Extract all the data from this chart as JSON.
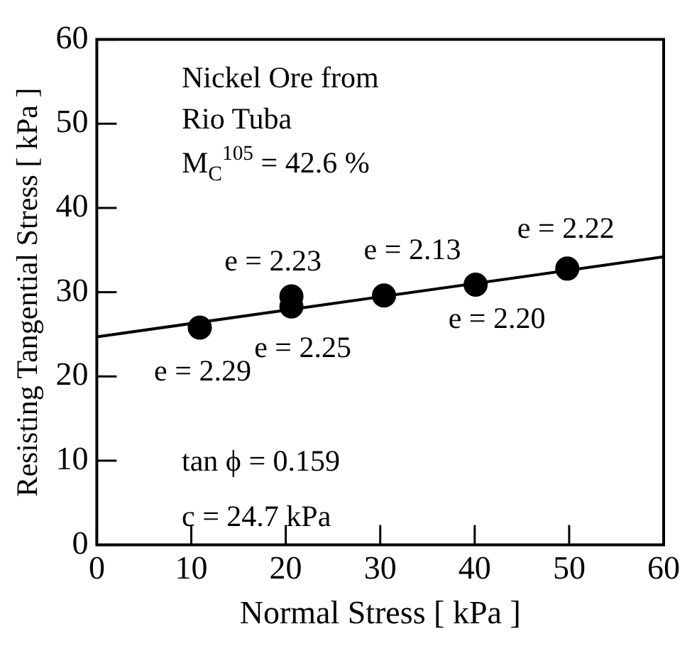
{
  "chart_data": {
    "type": "scatter",
    "xlabel": "Normal Stress [ kPa ]",
    "ylabel": "Resisting Tangential Stress [ kPa ]",
    "x": [
      10.9,
      20.6,
      20.6,
      30.4,
      40.1,
      49.8
    ],
    "series": [
      {
        "color": "#000000",
        "values": [
          25.8,
          29.5,
          28.3,
          29.6,
          30.9,
          32.8
        ]
      },
      {
        "type": "line",
        "color": "#000000",
        "x": [
          0,
          60
        ],
        "values": [
          24.7,
          34.2
        ],
        "marker": "none"
      }
    ],
    "marker": "circle",
    "xlim": [
      0,
      60
    ],
    "xticks": [
      0,
      10,
      20,
      30,
      40,
      50,
      60
    ],
    "ylim": [
      0,
      60
    ],
    "yticks": [
      0,
      10,
      20,
      30,
      40,
      50,
      60
    ],
    "grid": false,
    "legend": false,
    "annotations": [
      "Nickel Ore from",
      "Rio Tuba",
      "M$_{C}$$^{105}$ = 42.6 %",
      "tan ϕ = 0.159",
      "c = 24.7 kPa",
      {
        "text": "e = 2.29",
        "x": 10.9,
        "y": 25.8
      },
      {
        "text": "e = 2.23",
        "x": 20.6,
        "y": 29.5
      },
      {
        "text": "e = 2.25",
        "x": 20.6,
        "y": 28.3
      },
      {
        "text": "e = 2.13",
        "x": 30.4,
        "y": 29.6
      },
      {
        "text": "e = 2.20",
        "x": 40.1,
        "y": 30.9
      },
      {
        "text": "e = 2.22",
        "x": 49.8,
        "y": 32.8
      }
    ]
  }
}
